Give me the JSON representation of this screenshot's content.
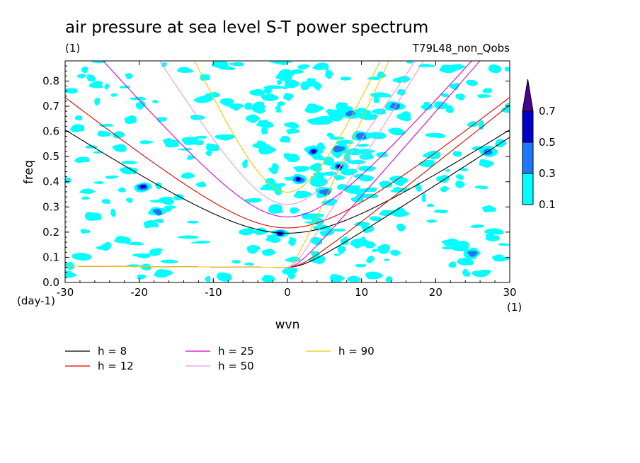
{
  "chart_data": {
    "type": "contour",
    "title": "air pressure at sea level S-T power spectrum",
    "title_units": "(1)",
    "run_label": "T79L48_non_Qobs",
    "xlabel": "wvn",
    "ylabel": "freq",
    "x_units": "(1)",
    "y_units": "(day-1)",
    "xlim": [
      -30,
      30
    ],
    "ylim": [
      0.0,
      0.88
    ],
    "x_ticks": [
      "-30",
      "-20",
      "-10",
      "0",
      "10",
      "20",
      "30"
    ],
    "x_tick_values": [
      -30,
      -20,
      -10,
      0,
      10,
      20,
      30
    ],
    "y_ticks": [
      "0.0",
      "0.1",
      "0.2",
      "0.3",
      "0.4",
      "0.5",
      "0.6",
      "0.7",
      "0.8"
    ],
    "y_tick_values": [
      0.0,
      0.1,
      0.2,
      0.3,
      0.4,
      0.5,
      0.6,
      0.7,
      0.8
    ],
    "colorbar": {
      "levels": [
        "0.1",
        "0.3",
        "0.5",
        "0.7"
      ],
      "level_values": [
        0.1,
        0.3,
        0.5,
        0.7
      ],
      "colors": [
        "#00ffff",
        "#1e78ff",
        "#0000c8",
        "#4b0096"
      ]
    },
    "series": [
      {
        "name": "h =  8",
        "h": 8,
        "color": "#000000"
      },
      {
        "name": "h = 12",
        "h": 12,
        "color": "#e00000"
      },
      {
        "name": "h = 25",
        "h": 25,
        "color": "#dd00cc"
      },
      {
        "name": "h = 50",
        "h": 50,
        "color": "#e49be0"
      },
      {
        "name": "h = 90",
        "h": 90,
        "color": "#f0c800"
      }
    ],
    "features": [
      {
        "x": 3.5,
        "y": 0.52,
        "level": 0.5
      },
      {
        "x": 1.5,
        "y": 0.41,
        "level": 0.5
      },
      {
        "x": 7.0,
        "y": 0.46,
        "level": 0.5
      },
      {
        "x": -19.5,
        "y": 0.38,
        "level": 0.5
      },
      {
        "x": -1.0,
        "y": 0.195,
        "level": 0.5
      },
      {
        "x": 10.0,
        "y": 0.58,
        "level": 0.3
      },
      {
        "x": 8.5,
        "y": 0.67,
        "level": 0.3
      },
      {
        "x": 14.5,
        "y": 0.7,
        "level": 0.3
      },
      {
        "x": 7.0,
        "y": 0.53,
        "level": 0.3
      },
      {
        "x": -17.5,
        "y": 0.28,
        "level": 0.3
      },
      {
        "x": 25.0,
        "y": 0.115,
        "level": 0.3
      },
      {
        "x": 5.0,
        "y": 0.36,
        "level": 0.3
      },
      {
        "x": 27.0,
        "y": 0.52,
        "level": 0.3
      }
    ]
  }
}
